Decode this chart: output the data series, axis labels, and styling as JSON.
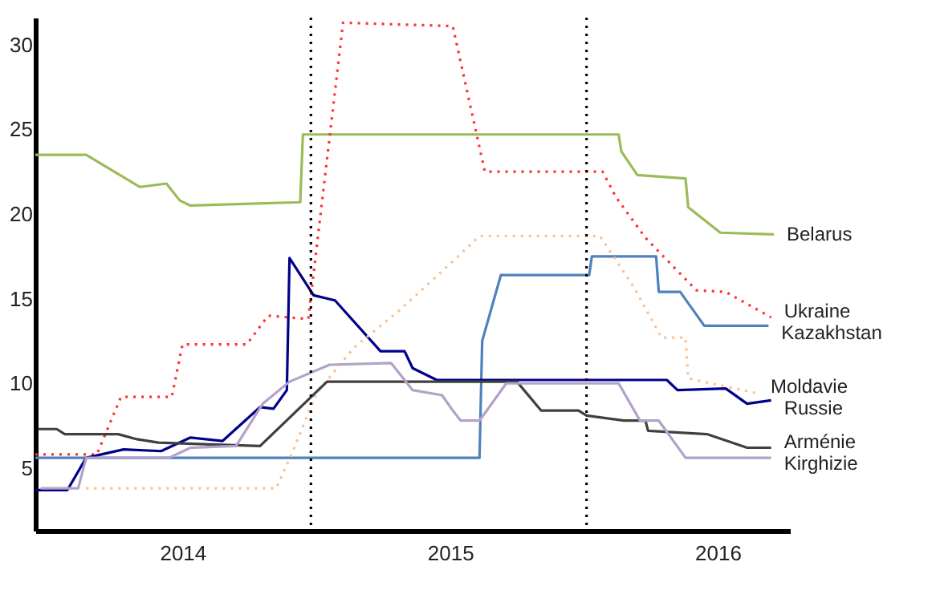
{
  "chart_data": {
    "type": "line",
    "xlim": [
      2013.45,
      2016.27
    ],
    "ylim": [
      1.3,
      31.6
    ],
    "xticks": [
      2014,
      2015,
      2016
    ],
    "yticks": [
      5,
      10,
      15,
      20,
      25,
      30
    ],
    "grid": false,
    "marker": "none",
    "ref_lines": [
      {
        "axis": "x",
        "value": 2014.48,
        "color": "#000000",
        "line_style": "dotted"
      },
      {
        "axis": "x",
        "value": 2015.51,
        "color": "#000000",
        "line_style": "dotted"
      }
    ],
    "series": [
      {
        "name": "Belarus",
        "color": "#9bbb59",
        "x": [
          2013.45,
          2013.64,
          2013.84,
          2013.94,
          2013.99,
          2014.03,
          2014.44,
          2014.45,
          2015.63,
          2015.64,
          2015.7,
          2015.88,
          2015.89,
          2016.01,
          2016.21
        ],
        "values": [
          23.5,
          23.5,
          21.6,
          21.8,
          20.8,
          20.5,
          20.7,
          24.7,
          24.7,
          23.7,
          22.3,
          22.1,
          20.4,
          18.9,
          18.8
        ]
      },
      {
        "name": "Ukraine",
        "color": "#ff3030",
        "line_style": "dotted",
        "x": [
          2013.45,
          2013.68,
          2013.77,
          2013.96,
          2014.0,
          2014.24,
          2014.32,
          2014.47,
          2014.6,
          2015.01,
          2015.13,
          2015.57,
          2015.62,
          2015.73,
          2015.92,
          2016.03,
          2016.2
        ],
        "values": [
          5.8,
          5.8,
          9.2,
          9.2,
          12.3,
          12.3,
          14.0,
          13.8,
          31.3,
          31.1,
          22.5,
          22.5,
          21.0,
          18.6,
          15.5,
          15.4,
          13.9
        ]
      },
      {
        "name": "Kazakhstan",
        "color": "#4f81bd",
        "x": [
          2013.45,
          2015.11,
          2015.12,
          2015.19,
          2015.52,
          2015.53,
          2015.77,
          2015.78,
          2015.86,
          2015.95,
          2016.19
        ],
        "values": [
          5.6,
          5.6,
          12.5,
          16.4,
          16.4,
          17.5,
          17.5,
          15.4,
          15.4,
          13.4,
          13.4
        ]
      },
      {
        "name": "Russie",
        "color": "#00008b",
        "x": [
          2013.45,
          2013.57,
          2013.64,
          2013.78,
          2013.92,
          2014.03,
          2014.15,
          2014.29,
          2014.34,
          2014.39,
          2014.4,
          2014.49,
          2014.57,
          2014.74,
          2014.83,
          2014.86,
          2014.95,
          2015.81,
          2015.85,
          2016.03,
          2016.11,
          2016.2
        ],
        "values": [
          3.7,
          3.7,
          5.6,
          6.1,
          6.0,
          6.8,
          6.6,
          8.6,
          8.5,
          9.6,
          17.4,
          15.2,
          14.9,
          11.9,
          11.9,
          10.9,
          10.2,
          10.2,
          9.6,
          9.7,
          8.8,
          9.0
        ]
      },
      {
        "name": "Moldavie",
        "color": "#fac090",
        "line_style": "dotted",
        "x": [
          2013.64,
          2014.35,
          2014.41,
          2014.5,
          2014.64,
          2014.81,
          2015.01,
          2015.11,
          2015.56,
          2015.69,
          2015.79,
          2015.88,
          2015.89,
          2016.15
        ],
        "values": [
          3.8,
          3.8,
          5.9,
          9.4,
          12.1,
          14.3,
          17.2,
          18.7,
          18.7,
          15.6,
          12.7,
          12.7,
          10.3,
          9.4
        ]
      },
      {
        "name": "Arménie",
        "color": "#404040",
        "x": [
          2013.46,
          2013.53,
          2013.56,
          2013.76,
          2013.83,
          2013.91,
          2014.29,
          2014.54,
          2015.25,
          2015.34,
          2015.48,
          2015.51,
          2015.65,
          2015.73,
          2015.74,
          2015.96,
          2016.11,
          2016.2
        ],
        "values": [
          7.3,
          7.3,
          7.0,
          7.0,
          6.7,
          6.5,
          6.3,
          10.1,
          10.1,
          8.4,
          8.4,
          8.1,
          7.8,
          7.8,
          7.2,
          7.0,
          6.2,
          6.2
        ]
      },
      {
        "name": "Kirghizie",
        "color": "#b3a2c7",
        "x": [
          2013.47,
          2013.61,
          2013.64,
          2013.95,
          2014.03,
          2014.2,
          2014.3,
          2014.4,
          2014.55,
          2014.78,
          2014.86,
          2014.97,
          2015.01,
          2015.04,
          2015.11,
          2015.21,
          2015.63,
          2015.71,
          2015.78,
          2015.88,
          2016.2
        ],
        "values": [
          3.8,
          3.8,
          5.6,
          5.6,
          6.2,
          6.3,
          8.8,
          10.1,
          11.1,
          11.2,
          9.6,
          9.3,
          8.4,
          7.8,
          7.8,
          10.0,
          10.0,
          7.8,
          7.8,
          5.6,
          5.6
        ]
      }
    ]
  }
}
